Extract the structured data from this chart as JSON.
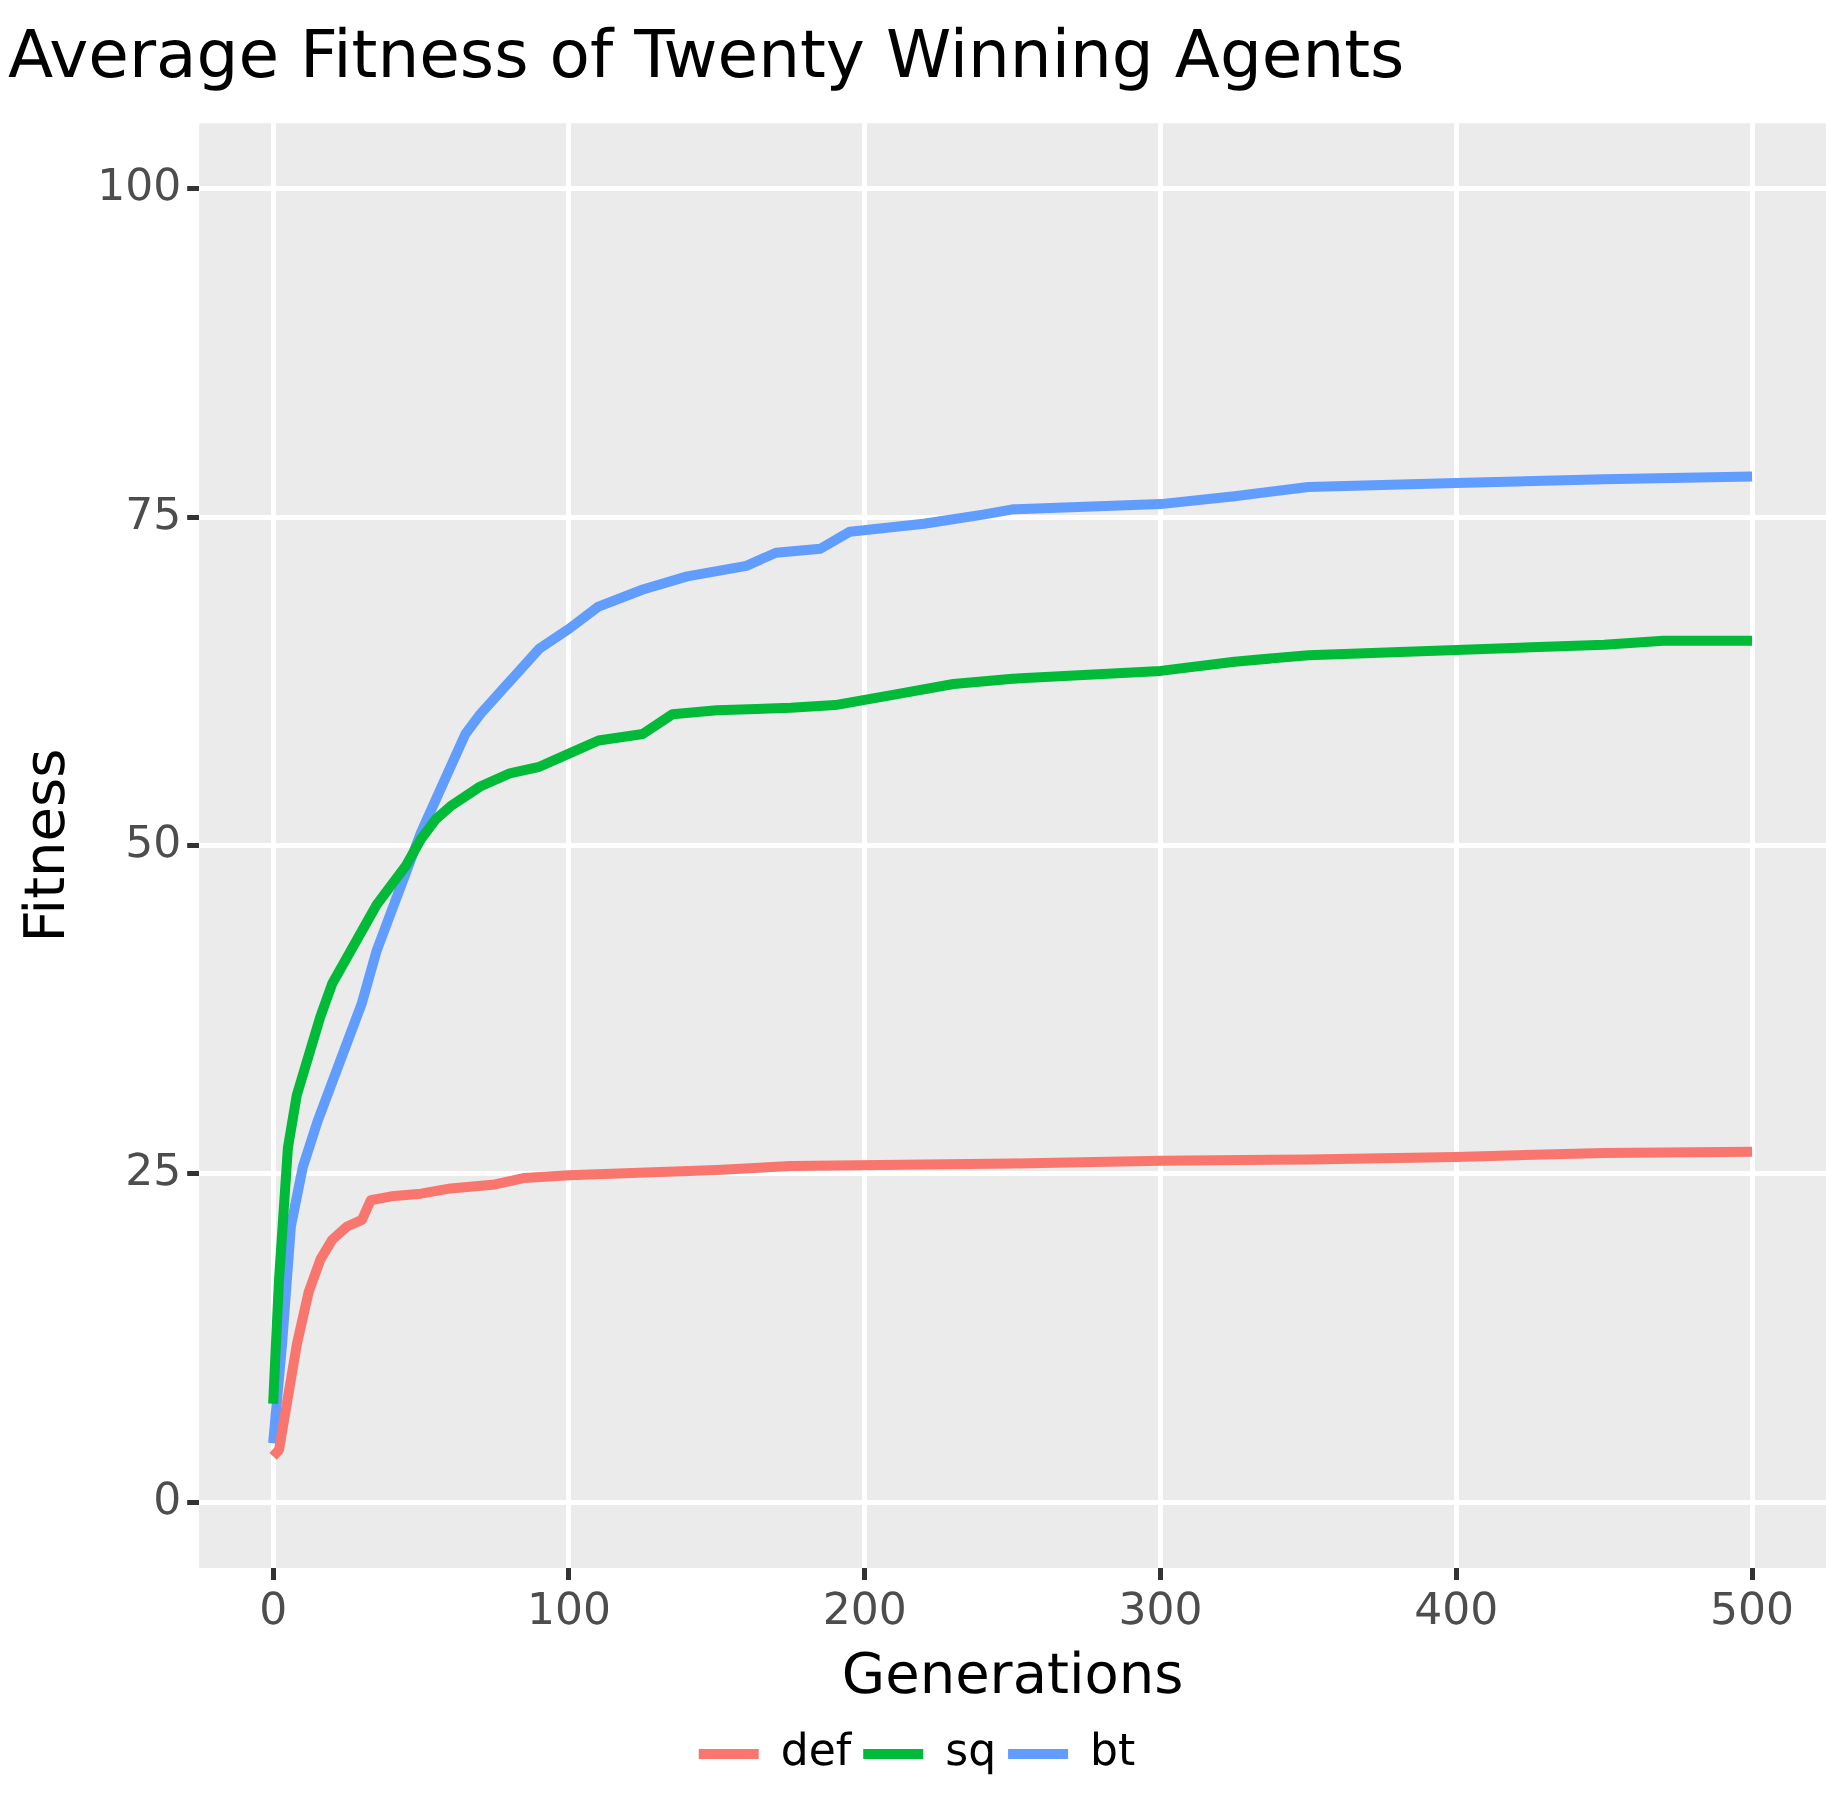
{
  "chart_data": {
    "type": "line",
    "title": "Average Fitness of Twenty Winning Agents",
    "xlabel": "Generations",
    "ylabel": "Fitness",
    "xlim": [
      -25,
      525
    ],
    "xticks": [
      0,
      100,
      200,
      300,
      400,
      500
    ],
    "ylim": [
      -5,
      105
    ],
    "yticks": [
      0,
      25,
      50,
      75,
      100
    ],
    "grid": true,
    "legend": "bottom",
    "marker": "none",
    "line_style": "solid",
    "series": [
      {
        "name": "def",
        "color": "#f8766d",
        "x": [
          0,
          2,
          5,
          8,
          12,
          16,
          20,
          25,
          30,
          33,
          40,
          50,
          60,
          75,
          85,
          100,
          150,
          175,
          250,
          300,
          350,
          400,
          450,
          500
        ],
        "values": [
          3.5,
          4,
          8,
          12,
          16,
          18.5,
          20,
          21,
          21.5,
          23,
          23.3,
          23.5,
          23.9,
          24.2,
          24.7,
          24.9,
          25.3,
          25.6,
          25.8,
          26,
          26.1,
          26.3,
          26.6,
          26.7
        ]
      },
      {
        "name": "sq",
        "color": "#00ba38",
        "x": [
          0,
          2,
          5,
          8,
          12,
          16,
          20,
          25,
          30,
          35,
          40,
          45,
          50,
          55,
          60,
          70,
          80,
          90,
          100,
          110,
          125,
          135,
          150,
          175,
          190,
          210,
          230,
          250,
          300,
          325,
          350,
          400,
          450,
          470,
          500
        ],
        "values": [
          7.5,
          17,
          27,
          31,
          34,
          37,
          39.5,
          41.5,
          43.5,
          45.5,
          47,
          48.5,
          50.5,
          52,
          53,
          54.5,
          55.5,
          56,
          57,
          58,
          58.5,
          60,
          60.3,
          60.5,
          60.7,
          61.5,
          62.3,
          62.7,
          63.3,
          64,
          64.5,
          64.9,
          65.3,
          65.6,
          65.6
        ]
      },
      {
        "name": "bt",
        "color": "#619cff",
        "x": [
          0,
          3,
          6,
          10,
          15,
          20,
          25,
          30,
          35,
          40,
          45,
          50,
          55,
          60,
          65,
          70,
          80,
          90,
          100,
          110,
          125,
          140,
          160,
          170,
          185,
          195,
          220,
          240,
          250,
          300,
          325,
          350,
          400,
          450,
          500
        ],
        "values": [
          4.5,
          12,
          21,
          25.5,
          29,
          32,
          35,
          38,
          42,
          45,
          48,
          51,
          53.5,
          56,
          58.5,
          60,
          62.5,
          65,
          66.5,
          68.2,
          69.5,
          70.5,
          71.3,
          72.3,
          72.6,
          73.9,
          74.5,
          75.2,
          75.6,
          76,
          76.6,
          77.3,
          77.6,
          77.9,
          78.1
        ]
      }
    ]
  }
}
